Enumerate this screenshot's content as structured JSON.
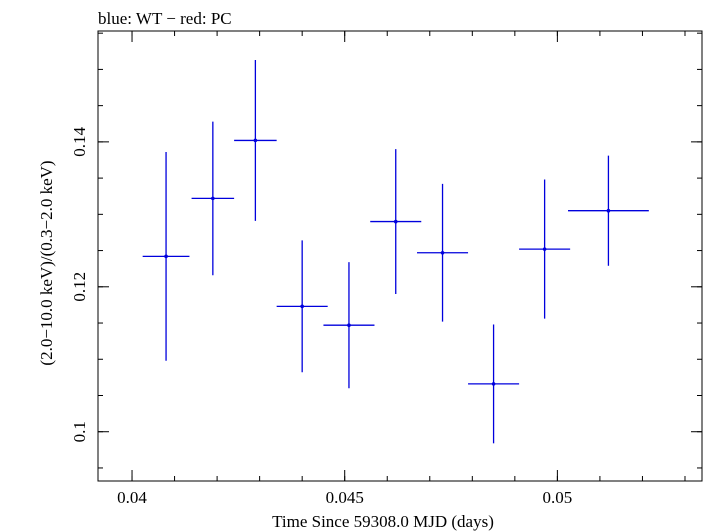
{
  "chart_data": {
    "type": "scatter",
    "title": "blue: WT − red: PC",
    "xlabel": "Time Since 59308.0 MJD (days)",
    "ylabel": "(2.0−10.0 keV)/(0.3−2.0 keV)",
    "xlim": [
      0.0392,
      0.0534
    ],
    "ylim": [
      0.0932,
      0.1553
    ],
    "x_ticks": [
      {
        "value": 0.04,
        "label": "0.04"
      },
      {
        "value": 0.045,
        "label": "0.045"
      },
      {
        "value": 0.05,
        "label": "0.05"
      }
    ],
    "y_ticks": [
      {
        "value": 0.1,
        "label": "0.1"
      },
      {
        "value": 0.12,
        "label": "0.12"
      },
      {
        "value": 0.14,
        "label": "0.14"
      }
    ],
    "x_minor_step": 0.001,
    "y_minor_step": 0.005,
    "grid": false,
    "series": [
      {
        "color": "#0000dd",
        "points": [
          {
            "x": 0.0408,
            "xerr": 0.00055,
            "y": 0.1242,
            "yerr": 0.0144
          },
          {
            "x": 0.0419,
            "xerr": 0.0005,
            "y": 0.1322,
            "yerr": 0.0106
          },
          {
            "x": 0.0429,
            "xerr": 0.0005,
            "y": 0.1402,
            "yerr": 0.0111
          },
          {
            "x": 0.044,
            "xerr": 0.0006,
            "y": 0.1173,
            "yerr": 0.0091
          },
          {
            "x": 0.0451,
            "xerr": 0.0006,
            "y": 0.1147,
            "yerr": 0.0087
          },
          {
            "x": 0.0462,
            "xerr": 0.0006,
            "y": 0.129,
            "yerr": 0.01
          },
          {
            "x": 0.0473,
            "xerr": 0.0006,
            "y": 0.1247,
            "yerr": 0.0095
          },
          {
            "x": 0.0485,
            "xerr": 0.0006,
            "y": 0.1066,
            "yerr": 0.0082
          },
          {
            "x": 0.0497,
            "xerr": 0.0006,
            "y": 0.1252,
            "yerr": 0.0096
          },
          {
            "x": 0.0512,
            "xerr": 0.00095,
            "y": 0.1305,
            "yerr": 0.0076
          }
        ]
      }
    ]
  }
}
